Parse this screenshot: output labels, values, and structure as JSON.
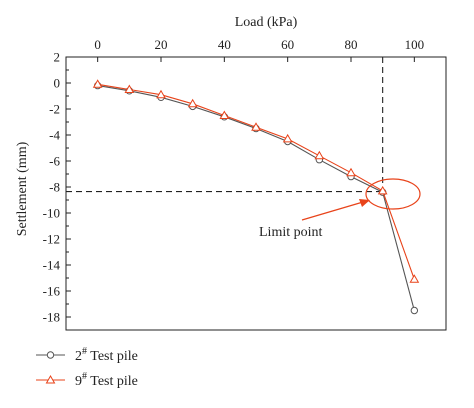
{
  "chart_data": {
    "type": "line",
    "xlabel": "Load (kPa)",
    "ylabel": "Settlement (mm)",
    "xlim": [
      -10,
      110
    ],
    "ylim": [
      -19,
      2
    ],
    "x_ticks": [
      0,
      20,
      40,
      60,
      80,
      100
    ],
    "y_ticks": [
      2,
      0,
      -2,
      -4,
      -6,
      -8,
      -10,
      -12,
      -14,
      -16,
      -18
    ],
    "x_axis_position": "top",
    "grid": false,
    "legend_position": "bottom-left",
    "series": [
      {
        "name_prefix": "2",
        "name_sup": "#",
        "name_suffix": " Test pile",
        "color": "#555555",
        "marker": "circle",
        "x": [
          0,
          10,
          20,
          30,
          40,
          50,
          60,
          70,
          80,
          90,
          100
        ],
        "y": [
          -0.2,
          -0.6,
          -1.1,
          -1.8,
          -2.6,
          -3.5,
          -4.5,
          -5.9,
          -7.2,
          -8.4,
          -17.5
        ]
      },
      {
        "name_prefix": "9",
        "name_sup": "#",
        "name_suffix": " Test pile",
        "color": "#e8431a",
        "marker": "triangle",
        "x": [
          0,
          10,
          20,
          30,
          40,
          50,
          60,
          70,
          80,
          90,
          100
        ],
        "y": [
          -0.1,
          -0.5,
          -0.9,
          -1.6,
          -2.5,
          -3.4,
          -4.3,
          -5.6,
          -6.9,
          -8.3,
          -15.1
        ]
      }
    ],
    "annotations": {
      "limit_label": "Limit point",
      "limit_x": 90,
      "limit_y": -8.35
    }
  }
}
